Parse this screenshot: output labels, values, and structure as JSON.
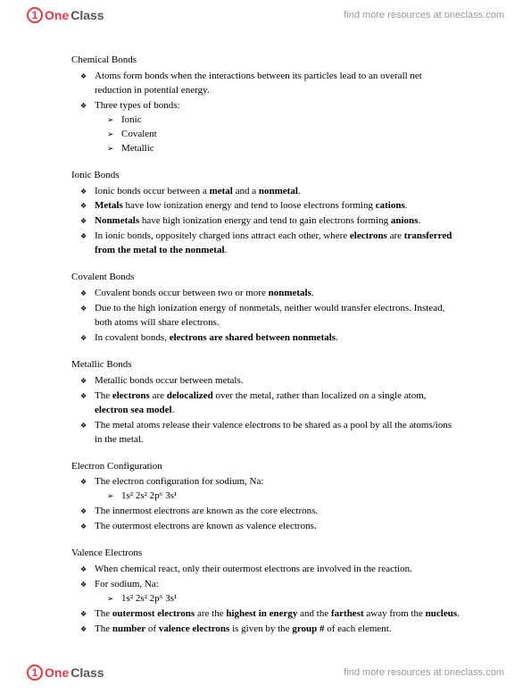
{
  "header": {
    "logo_one": "One",
    "logo_class": "Class",
    "resources": "find more resources at oneclass.com"
  },
  "footer": {
    "logo_one": "One",
    "logo_class": "Class",
    "resources": "find more resources at oneclass.com"
  },
  "sections": {
    "chemical_bonds": {
      "title": "Chemical Bonds",
      "item1": "Atoms form bonds when the interactions between its particles lead to an overall net reduction in potential energy.",
      "item2": "Three types of bonds:",
      "sub1": "Ionic",
      "sub2": "Covalent",
      "sub3": "Metallic"
    },
    "ionic_bonds": {
      "title": "Ionic Bonds",
      "i1a": "Ionic bonds occur between a ",
      "i1b": "metal",
      "i1c": " and a ",
      "i1d": "nonmetal",
      "i1e": ".",
      "i2a": "Metals",
      "i2b": " have low ionization energy and tend to loose electrons forming ",
      "i2c": "cations",
      "i2d": ".",
      "i3a": "Nonmetals",
      "i3b": " have high ionization energy and tend to gain electrons forming ",
      "i3c": "anions",
      "i3d": ".",
      "i4a": "In ionic bonds, oppositely charged ions attract each other, where ",
      "i4b": "electrons",
      "i4c": " are ",
      "i4d": "transferred from the metal to the nonmetal",
      "i4e": "."
    },
    "covalent_bonds": {
      "title": "Covalent Bonds",
      "i1a": "Covalent bonds occur between two or more ",
      "i1b": "nonmetals",
      "i1c": ".",
      "i2": "Due to the high ionization energy of nonmetals, neither would transfer electrons. Instead, both atoms will share electrons.",
      "i3a": "In covalent bonds, ",
      "i3b": "electrons are shared between nonmetals",
      "i3c": "."
    },
    "metallic_bonds": {
      "title": "Metallic Bonds",
      "i1": "Metallic bonds occur between metals.",
      "i2a": "The ",
      "i2b": "electrons",
      "i2c": " are ",
      "i2d": "delocalized",
      "i2e": " over the metal, rather than localized on a single atom, ",
      "i2f": "electron sea model",
      "i2g": ".",
      "i3": "The metal atoms release their valence electrons to be shared as a pool by all the atoms/ions in the metal."
    },
    "electron_config": {
      "title": "Electron Configuration",
      "i1": "The electron configuration for sodium, Na:",
      "sub1": "1s² 2s² 2p⁶ 3s¹",
      "i2": "The innermost electrons are known as the core electrons.",
      "i3": "The outermost electrons are known as valence electrons."
    },
    "valence": {
      "title": "Valence Electrons",
      "i1": "When chemical react, only their outermost electrons are involved in the reaction.",
      "i2": "For sodium, Na:",
      "sub1": "1s² 2s² 2p⁶ 3s¹",
      "i3a": "The ",
      "i3b": "outermost electrons",
      "i3c": " are the ",
      "i3d": "highest in energy",
      "i3e": " and the ",
      "i3f": "farthest",
      "i3g": " away from the ",
      "i3h": "nucleus",
      "i3i": ".",
      "i4a": "The ",
      "i4b": "number",
      "i4c": " of ",
      "i4d": "valence electrons",
      "i4e": " is given by the ",
      "i4f": "group #",
      "i4g": " of each element."
    }
  }
}
